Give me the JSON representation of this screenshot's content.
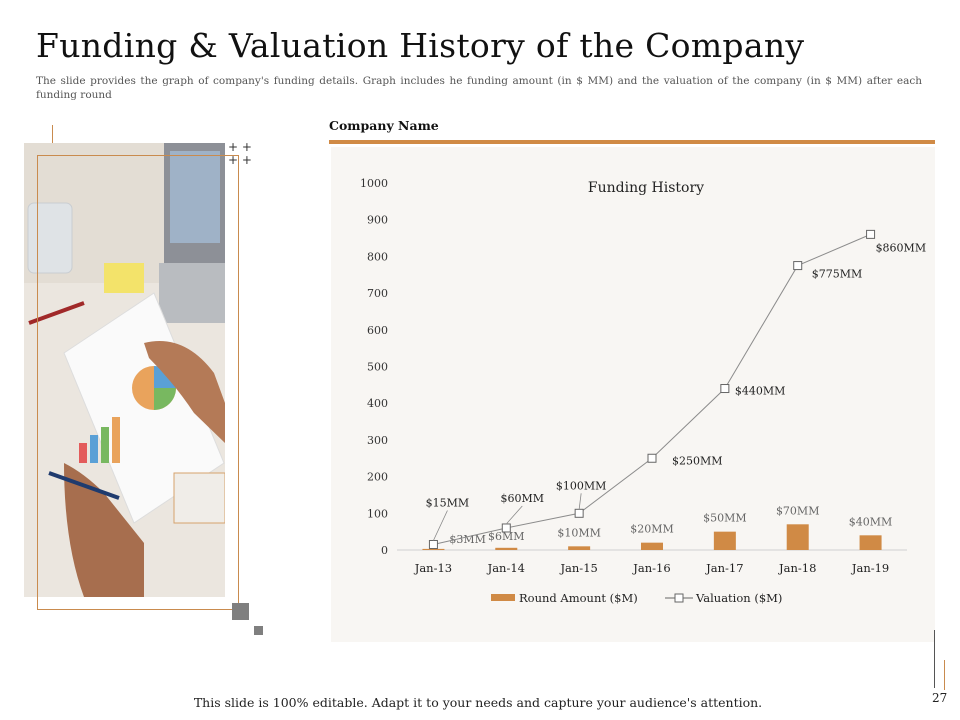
{
  "slide": {
    "title": "Funding & Valuation History of the Company",
    "subtitle": "The slide provides the graph of company's funding details. Graph includes he funding amount (in $ MM) and the valuation of the company (in $ MM) after each funding round",
    "company_label": "Company Name",
    "footer": "This slide is 100% editable. Adapt it to your needs and capture your audience's attention.",
    "page_number": "27"
  },
  "colors": {
    "accent": "#d08a45",
    "bar": "#d08a45",
    "line": "#8c8c8c",
    "panel": "#f8f6f3"
  },
  "chart_data": {
    "type": "bar",
    "title": "Funding History",
    "categories": [
      "Jan-13",
      "Jan-14",
      "Jan-15",
      "Jan-16",
      "Jan-17",
      "Jan-18",
      "Jan-19"
    ],
    "ylim": [
      0,
      1000
    ],
    "yticks": [
      "0",
      "100",
      "200",
      "300",
      "400",
      "500",
      "600",
      "700",
      "800",
      "900",
      "1000"
    ],
    "legend_position": "bottom",
    "grid": false,
    "series": [
      {
        "name": "Round Amount ($M)",
        "type": "bar",
        "values": [
          3,
          6,
          10,
          20,
          50,
          70,
          40
        ],
        "labels": [
          "$3MM",
          "$6MM",
          "$10MM",
          "$20MM",
          "$50MM",
          "$70MM",
          "$40MM"
        ]
      },
      {
        "name": "Valuation ($M)",
        "type": "line",
        "values": [
          15,
          60,
          100,
          250,
          440,
          775,
          860
        ],
        "labels": [
          "$15MM",
          "$60MM",
          "$100MM",
          "$250MM",
          "$440MM",
          "$775MM",
          "$860MM"
        ]
      }
    ]
  }
}
